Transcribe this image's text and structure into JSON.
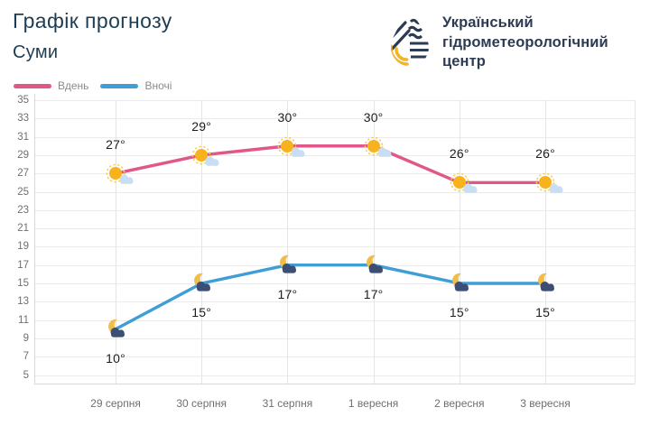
{
  "header": {
    "title": "Графік прогнозу",
    "subtitle": "Суми"
  },
  "logo": {
    "name_lines": [
      "Український",
      "гідрометеорологічний",
      "центр"
    ]
  },
  "chart_data": {
    "type": "line",
    "title": "Графік прогнозу — Суми",
    "categories": [
      "29 серпня",
      "30 серпня",
      "31 серпня",
      "1 вересня",
      "2 вересня",
      "3 вересня"
    ],
    "series": [
      {
        "id": "day",
        "name": "Вдень",
        "color": "#e2578a",
        "icon": "sun-cloud-icon",
        "label_position": "above",
        "values": [
          27,
          29,
          30,
          30,
          26,
          26
        ]
      },
      {
        "id": "night",
        "name": "Вночі",
        "color": "#3f9ed6",
        "icon": "moon-cloud-icon",
        "label_position": "below",
        "values": [
          10,
          15,
          17,
          17,
          15,
          15
        ]
      }
    ],
    "unit": "°",
    "ylim": [
      5,
      35
    ],
    "ytick_step": 2,
    "xlabel": "",
    "ylabel": "",
    "grid": true,
    "legend_position": "top-left"
  },
  "colors": {
    "title": "#1e3d52",
    "logo_text": "#2c3b54",
    "axis_text": "#6f6f6f",
    "grid": "#ebebeb",
    "vgrid": "#e5e5e5",
    "axis_line": "#d9d9d9",
    "value_label": "#1d1d1d",
    "legend_text": "#8c8c8c",
    "day": "#e2578a",
    "night": "#3f9ed6",
    "sun": "#f8b31c",
    "sun_ring": "#f6ce57",
    "day_cloud": "#c7def4",
    "moon": "#f0bd4a",
    "night_cloud": "#3d4e74",
    "logo_yellow": "#f0b52a"
  }
}
